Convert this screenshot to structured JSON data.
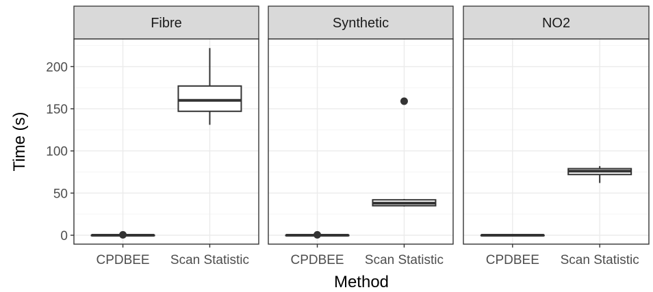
{
  "chart_data": {
    "type": "boxplot",
    "facets": [
      "Fibre",
      "Synthetic",
      "NO2"
    ],
    "categories": [
      "CPDBEE",
      "Scan Statistic"
    ],
    "xlabel": "Method",
    "ylabel": "Time (s)",
    "ylim": [
      -12,
      232
    ],
    "yticks": [
      0,
      50,
      100,
      150,
      200
    ],
    "grid": true,
    "panels": [
      {
        "facet": "Fibre",
        "boxes": [
          {
            "category": "CPDBEE",
            "min": 0,
            "q1": 0,
            "median": 0,
            "q3": 0,
            "max": 0,
            "outliers": [
              0.5
            ]
          },
          {
            "category": "Scan Statistic",
            "min": 131,
            "q1": 147,
            "median": 160,
            "q3": 177,
            "max": 222,
            "outliers": []
          }
        ]
      },
      {
        "facet": "Synthetic",
        "boxes": [
          {
            "category": "CPDBEE",
            "min": 0,
            "q1": 0,
            "median": 0,
            "q3": 0,
            "max": 0,
            "outliers": [
              0.5
            ]
          },
          {
            "category": "Scan Statistic",
            "min": 34,
            "q1": 35,
            "median": 38,
            "q3": 42,
            "max": 43,
            "outliers": [
              159
            ]
          }
        ]
      },
      {
        "facet": "NO2",
        "boxes": [
          {
            "category": "CPDBEE",
            "min": 0,
            "q1": 0,
            "median": 0,
            "q3": 0,
            "max": 0,
            "outliers": []
          },
          {
            "category": "Scan Statistic",
            "min": 62,
            "q1": 72,
            "median": 76,
            "q3": 79,
            "max": 82,
            "outliers": []
          }
        ]
      }
    ]
  },
  "colors": {
    "strip_fill": "#d9d9d9",
    "panel_border": "#333333",
    "grid_major": "#ebebeb",
    "grid_minor": "#f5f5f5",
    "box_line": "#333333",
    "box_fill": "#ffffff"
  }
}
